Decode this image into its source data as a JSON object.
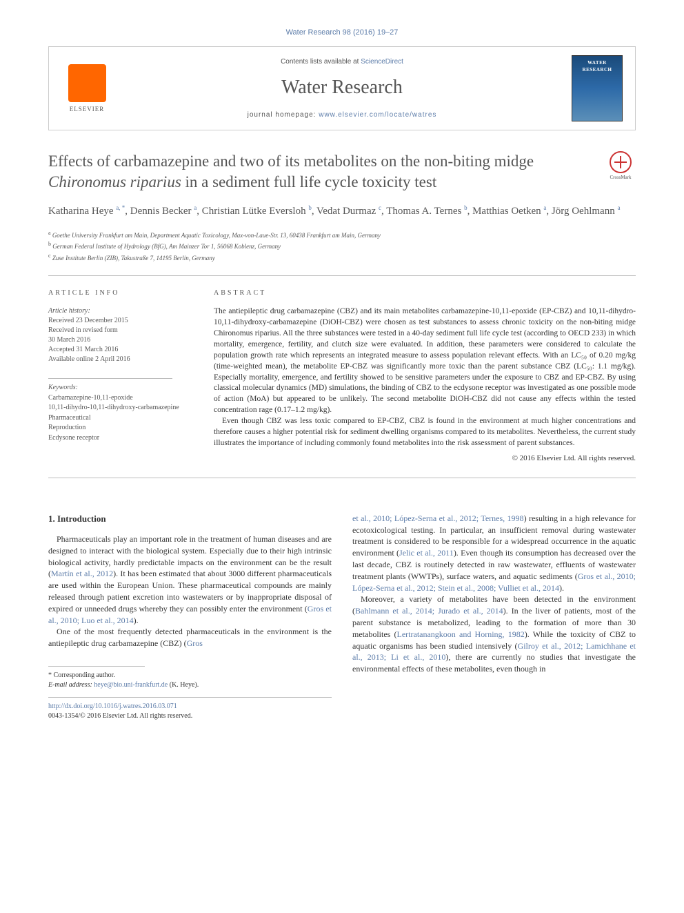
{
  "citation": "Water Research 98 (2016) 19–27",
  "banner": {
    "publisher": "ELSEVIER",
    "contents_line_prefix": "Contents lists available at ",
    "contents_link": "ScienceDirect",
    "journal_name": "Water Research",
    "homepage_prefix": "journal homepage: ",
    "homepage_url": "www.elsevier.com/locate/watres",
    "cover_label_top": "WATER",
    "cover_label_bottom": "RESEARCH"
  },
  "crossmark_label": "CrossMark",
  "title_html": "Effects of carbamazepine and two of its metabolites on the non-biting midge <em>Chironomus riparius</em> in a sediment full life cycle toxicity test",
  "authors_html": "Katharina Heye <sup>a, *</sup>, Dennis Becker <sup>a</sup>, Christian Lütke Eversloh <sup>b</sup>, Vedat Durmaz <sup>c</sup>, Thomas A. Ternes <sup>b</sup>, Matthias Oetken <sup>a</sup>, Jörg Oehlmann <sup>a</sup>",
  "affiliations": [
    {
      "sup": "a",
      "text": "Goethe University Frankfurt am Main, Department Aquatic Toxicology, Max-von-Laue-Str. 13, 60438 Frankfurt am Main, Germany"
    },
    {
      "sup": "b",
      "text": "German Federal Institute of Hydrology (BfG), Am Mainzer Tor 1, 56068 Koblenz, Germany"
    },
    {
      "sup": "c",
      "text": "Zuse Institute Berlin (ZIB), Takustraße 7, 14195 Berlin, Germany"
    }
  ],
  "info_labels": {
    "article_info": "ARTICLE INFO",
    "abstract": "ABSTRACT"
  },
  "history": {
    "heading": "Article history:",
    "lines": [
      "Received 23 December 2015",
      "Received in revised form",
      "30 March 2016",
      "Accepted 31 March 2016",
      "Available online 2 April 2016"
    ]
  },
  "keywords": {
    "heading": "Keywords:",
    "items": [
      "Carbamazepine-10,11-epoxide",
      "10,11-dihydro-10,11-dihydroxy-carbamazepine",
      "Pharmaceutical",
      "Reproduction",
      "Ecdysone receptor"
    ]
  },
  "abstract": {
    "p1": "The antiepileptic drug carbamazepine (CBZ) and its main metabolites carbamazepine-10,11-epoxide (EP-CBZ) and 10,11-dihydro-10,11-dihydroxy-carbamazepine (DiOH-CBZ) were chosen as test substances to assess chronic toxicity on the non-biting midge Chironomus riparius. All the three substances were tested in a 40-day sediment full life cycle test (according to OECD 233) in which mortality, emergence, fertility, and clutch size were evaluated. In addition, these parameters were considered to calculate the population growth rate which represents an integrated measure to assess population relevant effects. With an LC₅₀ of 0.20 mg/kg (time-weighted mean), the metabolite EP-CBZ was significantly more toxic than the parent substance CBZ (LC₅₀: 1.1 mg/kg). Especially mortality, emergence, and fertility showed to be sensitive parameters under the exposure to CBZ and EP-CBZ. By using classical molecular dynamics (MD) simulations, the binding of CBZ to the ecdysone receptor was investigated as one possible mode of action (MoA) but appeared to be unlikely. The second metabolite DiOH-CBZ did not cause any effects within the tested concentration rage (0.17–1.2 mg/kg).",
    "p2": "Even though CBZ was less toxic compared to EP-CBZ, CBZ is found in the environment at much higher concentrations and therefore causes a higher potential risk for sediment dwelling organisms compared to its metabolites. Nevertheless, the current study illustrates the importance of including commonly found metabolites into the risk assessment of parent substances.",
    "copyright": "© 2016 Elsevier Ltd. All rights reserved."
  },
  "body": {
    "section_heading": "1. Introduction",
    "col1_p1_html": "Pharmaceuticals play an important role in the treatment of human diseases and are designed to interact with the biological system. Especially due to their high intrinsic biological activity, hardly predictable impacts on the environment can be the result (<a>Martín et al., 2012</a>). It has been estimated that about 3000 different pharmaceuticals are used within the European Union. These pharmaceutical compounds are mainly released through patient excretion into wastewaters or by inappropriate disposal of expired or unneeded drugs whereby they can possibly enter the environment (<a>Gros et al., 2010; Luo et al., 2014</a>).",
    "col1_p2_html": "One of the most frequently detected pharmaceuticals in the environment is the antiepileptic drug carbamazepine (CBZ) (<a>Gros</a>",
    "col2_p1_html": "<a>et al., 2010; López-Serna et al., 2012; Ternes, 1998</a>) resulting in a high relevance for ecotoxicological testing. In particular, an insufficient removal during wastewater treatment is considered to be responsible for a widespread occurrence in the aquatic environment (<a>Jelic et al., 2011</a>). Even though its consumption has decreased over the last decade, CBZ is routinely detected in raw wastewater, effluents of wastewater treatment plants (WWTPs), surface waters, and aquatic sediments (<a>Gros et al., 2010; López-Serna et al., 2012; Stein et al., 2008; Vulliet et al., 2014</a>).",
    "col2_p2_html": "Moreover, a variety of metabolites have been detected in the environment (<a>Bahlmann et al., 2014; Jurado et al., 2014</a>). In the liver of patients, most of the parent substance is metabolized, leading to the formation of more than 30 metabolites (<a>Lertratanangkoon and Horning, 1982</a>). While the toxicity of CBZ to aquatic organisms has been studied intensively (<a>Gilroy et al., 2012; Lamichhane et al., 2013; Li et al., 2010</a>), there are currently no studies that investigate the environmental effects of these metabolites, even though in"
  },
  "footer": {
    "corresponding": "* Corresponding author.",
    "email_label": "E-mail address: ",
    "email": "heye@bio.uni-frankfurt.de",
    "email_suffix": " (K. Heye).",
    "doi": "http://dx.doi.org/10.1016/j.watres.2016.03.071",
    "issn_line": "0043-1354/© 2016 Elsevier Ltd. All rights reserved."
  },
  "colors": {
    "link": "#5b7ba8",
    "text": "#333333",
    "muted": "#555555",
    "elsevier_orange": "#ff6600",
    "cover_grad_top": "#1a4a7a",
    "cover_grad_bottom": "#5b8fb8"
  }
}
